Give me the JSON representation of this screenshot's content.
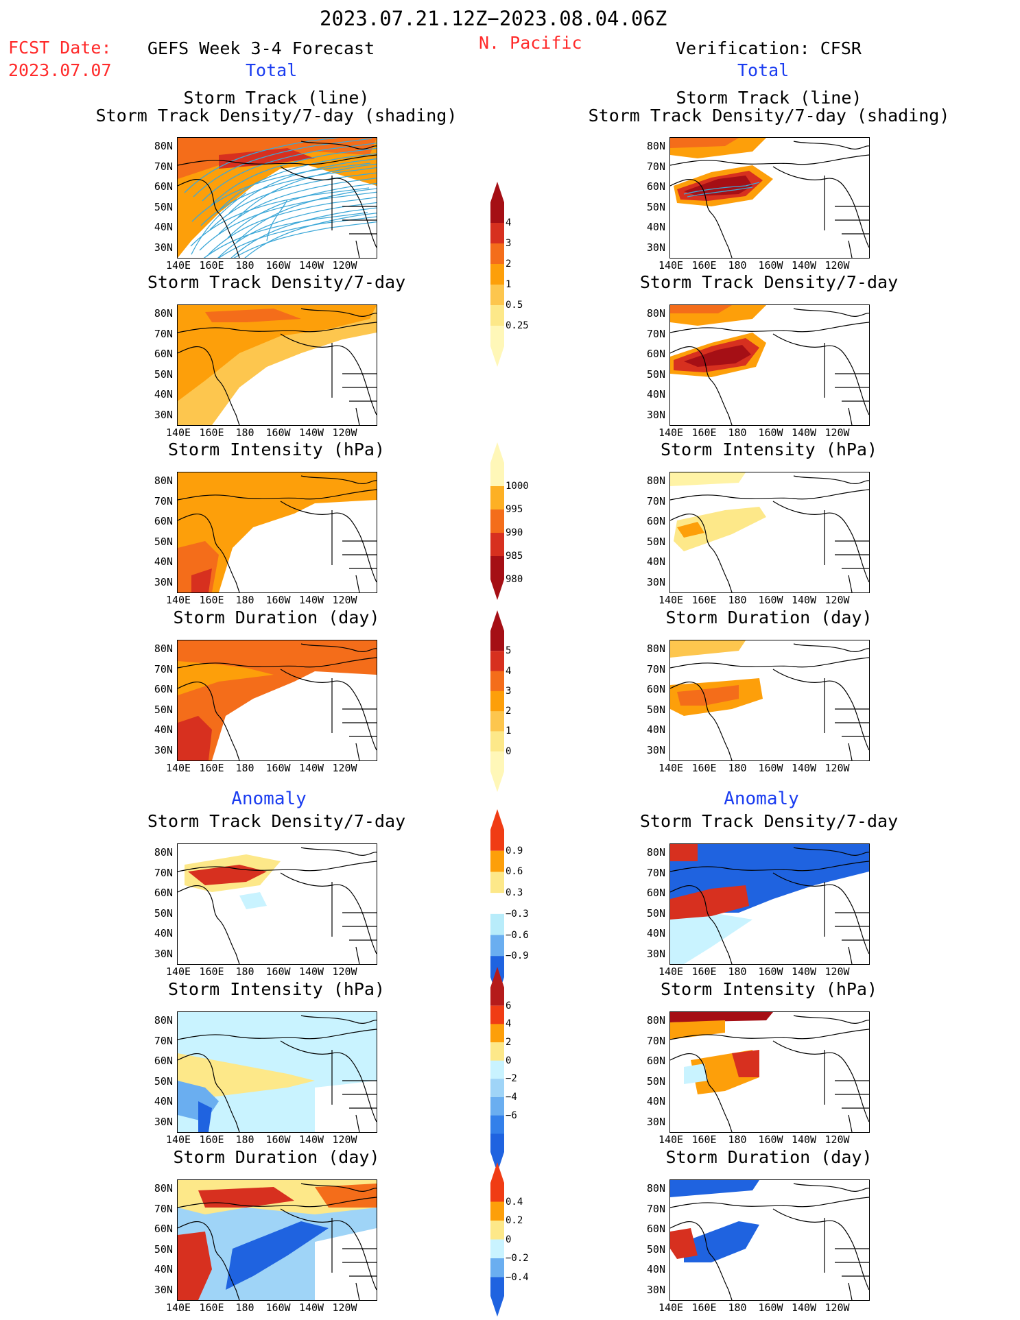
{
  "header": {
    "date_range": "2023.07.21.12Z−2023.08.04.06Z",
    "fcst_label": "FCST Date:",
    "fcst_date": "2023.07.07",
    "left_title": "GEFS Week 3-4 Forecast",
    "region": "N. Pacific",
    "right_title": "Verification: CFSR",
    "total_left": "Total",
    "total_right": "Total",
    "anomaly_left": "Anomaly",
    "anomaly_right": "Anomaly"
  },
  "axes": {
    "x_ticks": [
      "140E",
      "160E",
      "180",
      "160W",
      "140W",
      "120W"
    ],
    "y_ticks": [
      "80N",
      "70N",
      "60N",
      "50N",
      "40N",
      "30N"
    ]
  },
  "panels": {
    "track_forecast": {
      "title1": "Storm Track (line)",
      "title2": "Storm Track Density/7-day (shading)"
    },
    "track_verif": {
      "title1": "Storm Track (line)",
      "title2": "Storm Track Density/7-day (shading)"
    },
    "density_forecast": {
      "title1": "Storm Track Density/7-day"
    },
    "density_verif": {
      "title1": "Storm Track Density/7-day"
    },
    "intensity_forecast": {
      "title1": "Storm Intensity (hPa)"
    },
    "intensity_verif": {
      "title1": "Storm Intensity (hPa)"
    },
    "duration_forecast": {
      "title1": "Storm Duration (day)"
    },
    "duration_verif": {
      "title1": "Storm Duration (day)"
    },
    "anom_density_forecast": {
      "title1": "Storm Track Density/7-day"
    },
    "anom_density_verif": {
      "title1": "Storm Track Density/7-day"
    },
    "anom_intensity_forecast": {
      "title1": "Storm Intensity (hPa)"
    },
    "anom_intensity_verif": {
      "title1": "Storm Intensity (hPa)"
    },
    "anom_duration_forecast": {
      "title1": "Storm Duration (day)"
    },
    "anom_duration_verif": {
      "title1": "Storm Duration (day)"
    }
  },
  "colorbars": {
    "density": {
      "labels": [
        "4",
        "3",
        "2",
        "1",
        "0.5",
        "0.25"
      ],
      "colors": [
        "#a50f15",
        "#d7301f",
        "#f46d1a",
        "#fd9f0a",
        "#fdc64e",
        "#fde889",
        "#fff7b8"
      ]
    },
    "intensity": {
      "labels": [
        "1000",
        "995",
        "990",
        "985",
        "980"
      ],
      "colors": [
        "#fff7b8",
        "#fdb024",
        "#f46d1a",
        "#d7301f",
        "#a50f15"
      ]
    },
    "duration": {
      "labels": [
        "5",
        "4",
        "3",
        "2",
        "1",
        "0"
      ],
      "colors": [
        "#a50f15",
        "#d7301f",
        "#f46d1a",
        "#fd9f0a",
        "#fdc64e",
        "#fde889",
        "#fff7b8"
      ]
    },
    "anom_density": {
      "labels": [
        "0.9",
        "0.6",
        "0.3",
        "−0.3",
        "−0.6",
        "−0.9"
      ],
      "colors": [
        "#f03c14",
        "#fd9f0a",
        "#fde889",
        "#ffffff",
        "#b8ecfa",
        "#6aaef0",
        "#1f63e0"
      ]
    },
    "anom_intensity": {
      "labels": [
        "6",
        "4",
        "2",
        "0",
        "−2",
        "−4",
        "−6"
      ],
      "colors": [
        "#b51b1b",
        "#f03c14",
        "#fd9f0a",
        "#fde889",
        "#c9f3ff",
        "#9fd4f7",
        "#6aaef0",
        "#3380ea",
        "#1f63e0"
      ]
    },
    "anom_duration": {
      "labels": [
        "0.4",
        "0.2",
        "0",
        "−0.2",
        "−0.4"
      ],
      "colors": [
        "#f03c14",
        "#fd9f0a",
        "#fde889",
        "#c9f3ff",
        "#6aaef0",
        "#1f63e0"
      ]
    }
  },
  "colors": {
    "fcst_label": "#ff2a2a",
    "region": "#ff2a2a",
    "total": "#1a3cf0",
    "track_line": "#3da8d8"
  }
}
